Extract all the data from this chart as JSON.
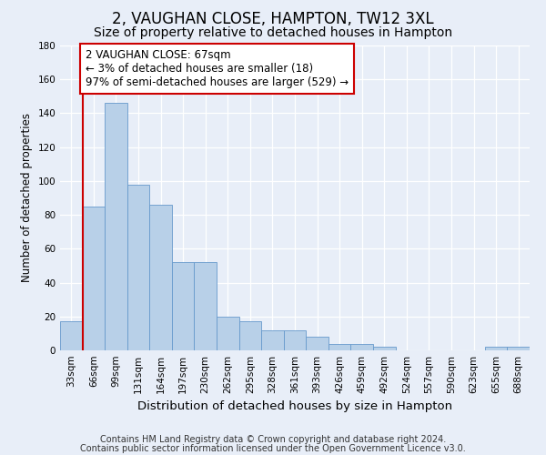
{
  "title": "2, VAUGHAN CLOSE, HAMPTON, TW12 3XL",
  "subtitle": "Size of property relative to detached houses in Hampton",
  "xlabel": "Distribution of detached houses by size in Hampton",
  "ylabel": "Number of detached properties",
  "categories": [
    "33sqm",
    "66sqm",
    "99sqm",
    "131sqm",
    "164sqm",
    "197sqm",
    "230sqm",
    "262sqm",
    "295sqm",
    "328sqm",
    "361sqm",
    "393sqm",
    "426sqm",
    "459sqm",
    "492sqm",
    "524sqm",
    "557sqm",
    "590sqm",
    "623sqm",
    "655sqm",
    "688sqm"
  ],
  "values": [
    17,
    85,
    146,
    98,
    86,
    52,
    52,
    20,
    17,
    12,
    12,
    8,
    4,
    4,
    2,
    0,
    0,
    0,
    0,
    2,
    2
  ],
  "bar_color": "#b8d0e8",
  "bar_edge_color": "#6699cc",
  "ylim": [
    0,
    180
  ],
  "yticks": [
    0,
    20,
    40,
    60,
    80,
    100,
    120,
    140,
    160,
    180
  ],
  "annotation_box_text": "2 VAUGHAN CLOSE: 67sqm\n← 3% of detached houses are smaller (18)\n97% of semi-detached houses are larger (529) →",
  "annotation_box_color": "#ffffff",
  "annotation_box_edge_color": "#cc0000",
  "vline_x": 0.5,
  "vline_color": "#cc0000",
  "background_color": "#e8eef8",
  "footer_line1": "Contains HM Land Registry data © Crown copyright and database right 2024.",
  "footer_line2": "Contains public sector information licensed under the Open Government Licence v3.0.",
  "title_fontsize": 12,
  "subtitle_fontsize": 10,
  "xlabel_fontsize": 9.5,
  "ylabel_fontsize": 8.5,
  "tick_fontsize": 7.5,
  "annotation_fontsize": 8.5,
  "footer_fontsize": 7
}
